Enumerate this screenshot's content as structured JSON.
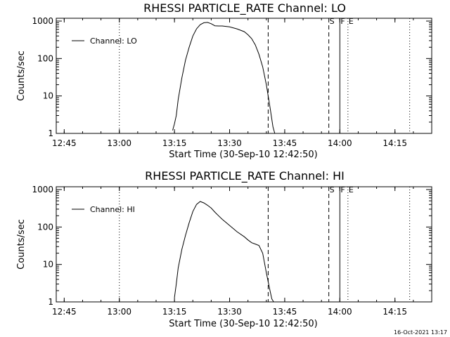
{
  "chart_data": [
    {
      "type": "line",
      "title": "RHESSI PARTICLE_RATE Channel: LO",
      "xlabel": "Start Time (30-Sep-10 12:42:50)",
      "ylabel": "Counts/sec",
      "yscale": "log",
      "ylim": [
        1,
        1000
      ],
      "xlim": [
        "12:42:50",
        "14:25:00"
      ],
      "x_ticks": [
        "12:45",
        "13:00",
        "13:15",
        "13:30",
        "13:45",
        "14:00",
        "14:15"
      ],
      "y_ticks": [
        "1",
        "10",
        "100",
        "1000"
      ],
      "legend": {
        "position": "top-left",
        "entries": [
          "Channel: LO"
        ]
      },
      "markers": [
        {
          "label": "S",
          "time": "13:57",
          "style": "dashed"
        },
        {
          "label": "",
          "time": "13:40.5",
          "style": "dashed"
        },
        {
          "label": "F",
          "time": "14:00",
          "style": "solid"
        },
        {
          "label": "E",
          "time": "14:02.2",
          "style": "dotted"
        },
        {
          "label": "",
          "time": "13:00",
          "style": "dotted"
        },
        {
          "label": "",
          "time": "14:19",
          "style": "dotted"
        }
      ],
      "series": [
        {
          "name": "Channel: LO",
          "x": [
            "13:14.5",
            "13:15",
            "13:15.5",
            "13:16",
            "13:17",
            "13:18",
            "13:19",
            "13:20",
            "13:21",
            "13:22",
            "13:23",
            "13:24",
            "13:25",
            "13:26",
            "13:27",
            "13:28",
            "13:30",
            "13:32",
            "13:34",
            "13:35",
            "13:36",
            "13:37",
            "13:38",
            "13:39",
            "13:40",
            "13:41",
            "13:41.8",
            "13:42.3"
          ],
          "y": [
            1.2,
            1.8,
            3,
            8,
            30,
            90,
            200,
            400,
            620,
            800,
            900,
            920,
            850,
            750,
            740,
            740,
            700,
            620,
            520,
            430,
            340,
            230,
            130,
            60,
            20,
            5,
            1.5,
            1
          ]
        }
      ]
    },
    {
      "type": "line",
      "title": "RHESSI PARTICLE_RATE Channel: HI",
      "xlabel": "Start Time (30-Sep-10 12:42:50)",
      "ylabel": "Counts/sec",
      "yscale": "log",
      "ylim": [
        1,
        1000
      ],
      "xlim": [
        "12:42:50",
        "14:25:00"
      ],
      "x_ticks": [
        "12:45",
        "13:00",
        "13:15",
        "13:30",
        "13:45",
        "14:00",
        "14:15"
      ],
      "y_ticks": [
        "1",
        "10",
        "100",
        "1000"
      ],
      "legend": {
        "position": "top-left",
        "entries": [
          "Channel: HI"
        ]
      },
      "markers": [
        {
          "label": "S",
          "time": "13:57",
          "style": "dashed"
        },
        {
          "label": "",
          "time": "13:40.5",
          "style": "dashed"
        },
        {
          "label": "F",
          "time": "14:00",
          "style": "solid"
        },
        {
          "label": "E",
          "time": "14:02.2",
          "style": "dotted"
        },
        {
          "label": "",
          "time": "13:00",
          "style": "dotted"
        },
        {
          "label": "",
          "time": "14:19",
          "style": "dotted"
        }
      ],
      "series": [
        {
          "name": "Channel: HI",
          "x": [
            "13:15",
            "13:15.5",
            "13:16",
            "13:17",
            "13:18",
            "13:19",
            "13:20",
            "13:21",
            "13:22",
            "13:23",
            "13:24",
            "13:25",
            "13:26",
            "13:27",
            "13:28",
            "13:30",
            "13:32",
            "13:34",
            "13:35",
            "13:36",
            "13:37",
            "13:38",
            "13:39",
            "13:40",
            "13:41",
            "13:41.5",
            "13:42"
          ],
          "y": [
            1.3,
            3,
            8,
            25,
            60,
            130,
            260,
            400,
            480,
            440,
            380,
            320,
            250,
            200,
            160,
            110,
            75,
            55,
            45,
            38,
            35,
            32,
            20,
            6,
            2,
            1.2,
            1
          ]
        }
      ]
    }
  ],
  "timestamp": "16-Oct-2021 13:17"
}
